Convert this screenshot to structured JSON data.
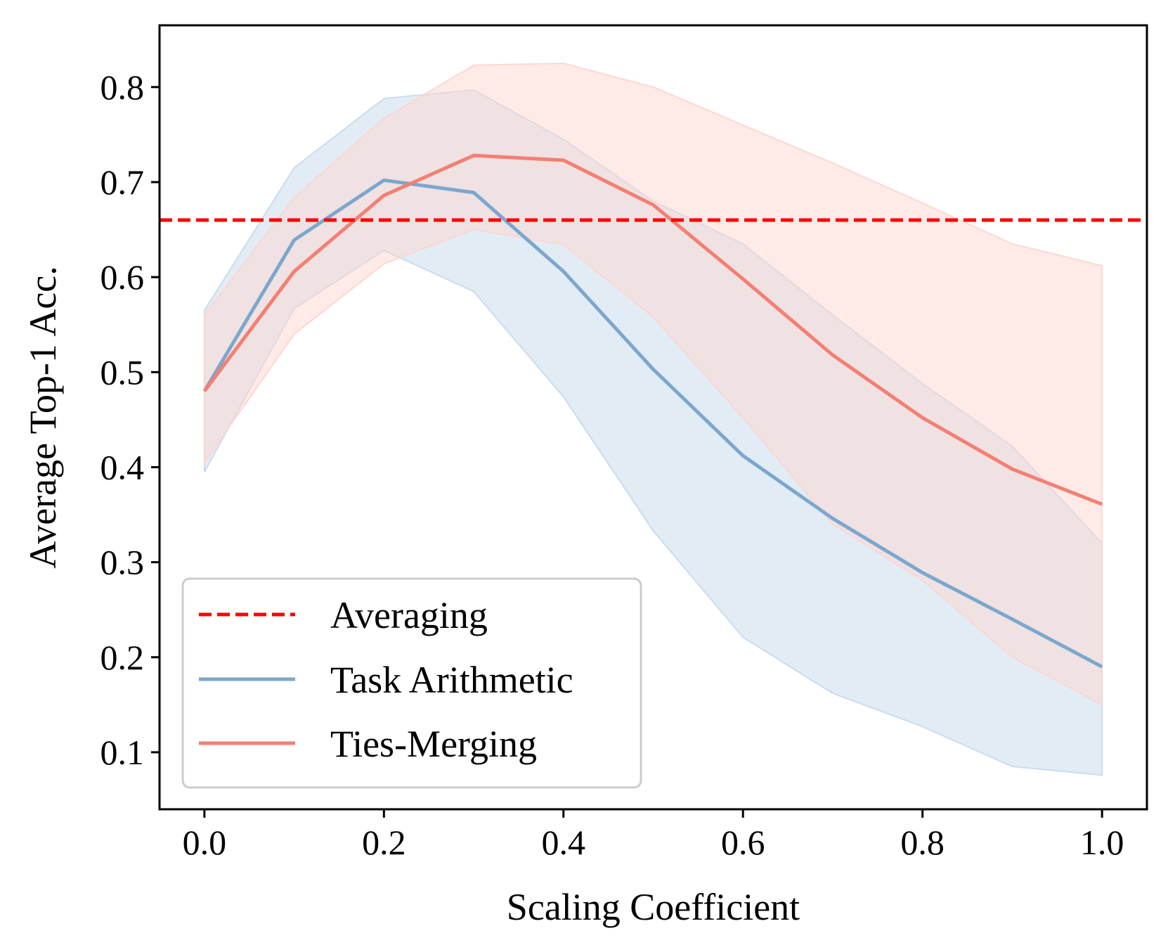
{
  "chart_data": {
    "type": "line",
    "xlabel": "Scaling Coefficient",
    "ylabel": "Average Top-1 Acc.",
    "xlim": [
      -0.05,
      1.05
    ],
    "ylim": [
      0.04,
      0.865
    ],
    "xticks": [
      0.0,
      0.2,
      0.4,
      0.6,
      0.8,
      1.0
    ],
    "xtick_labels": [
      "0.0",
      "0.2",
      "0.4",
      "0.6",
      "0.8",
      "1.0"
    ],
    "yticks": [
      0.1,
      0.2,
      0.3,
      0.4,
      0.5,
      0.6,
      0.7,
      0.8
    ],
    "ytick_labels": [
      "0.1",
      "0.2",
      "0.3",
      "0.4",
      "0.5",
      "0.6",
      "0.7",
      "0.8"
    ],
    "grid": false,
    "legend_position": "lower-left",
    "x": [
      0.0,
      0.1,
      0.2,
      0.3,
      0.4,
      0.5,
      0.6,
      0.7,
      0.8,
      0.9,
      1.0
    ],
    "reference_line": {
      "name": "Averaging",
      "y": 0.66,
      "color": "#ff0000",
      "style": "dashed"
    },
    "series": [
      {
        "name": "Task Arithmetic",
        "color": "#7ba7ce",
        "band_color": "#c6d9ec",
        "values": [
          0.48,
          0.639,
          0.702,
          0.689,
          0.606,
          0.503,
          0.412,
          0.346,
          0.289,
          0.24,
          0.19
        ],
        "upper": [
          0.565,
          0.715,
          0.788,
          0.797,
          0.745,
          0.68,
          0.635,
          0.56,
          0.488,
          0.422,
          0.32
        ],
        "lower": [
          0.395,
          0.567,
          0.628,
          0.585,
          0.474,
          0.333,
          0.221,
          0.162,
          0.127,
          0.085,
          0.076
        ]
      },
      {
        "name": "Ties-Merging",
        "color": "#f47f72",
        "band_color": "#fdd5cf",
        "values": [
          0.48,
          0.606,
          0.686,
          0.728,
          0.723,
          0.676,
          0.598,
          0.518,
          0.452,
          0.398,
          0.361
        ],
        "upper": [
          0.56,
          0.684,
          0.767,
          0.823,
          0.825,
          0.8,
          0.76,
          0.72,
          0.678,
          0.635,
          0.612
        ],
        "lower": [
          0.405,
          0.54,
          0.614,
          0.65,
          0.634,
          0.558,
          0.452,
          0.34,
          0.281,
          0.2,
          0.15
        ]
      }
    ]
  }
}
